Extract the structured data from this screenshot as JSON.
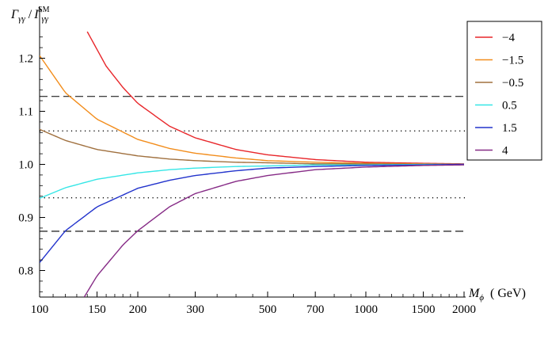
{
  "chart_data": {
    "type": "line",
    "ylabel": "Γγγ / ΓγγSM",
    "ylabel_parts": {
      "sym": "Γ",
      "sub": "γγ",
      "slash": "/",
      "sym2": "Γ",
      "sub2": "γγ",
      "sup2": "SM"
    },
    "xlabel": "Mϕ ( GeV)",
    "xlabel_parts": {
      "sym": "M",
      "sub": "ϕ",
      "unit": "( GeV)"
    },
    "x_scale": "log",
    "xlim": [
      100,
      2000
    ],
    "ylim": [
      0.75,
      1.25
    ],
    "x_ticks": [
      100,
      150,
      200,
      300,
      500,
      700,
      1000,
      1500,
      2000
    ],
    "x_tick_labels": [
      "100",
      "150",
      "200",
      "300",
      "500",
      "700",
      "1000",
      "1500",
      "2000"
    ],
    "y_ticks": [
      0.8,
      0.9,
      1.0,
      1.1,
      1.2
    ],
    "y_tick_labels": [
      "0.8",
      "0.9",
      "1.0",
      "1.1",
      "1.2"
    ],
    "reference_lines": [
      {
        "y": 1.128,
        "style": "dashed"
      },
      {
        "y": 1.063,
        "style": "dotted"
      },
      {
        "y": 0.937,
        "style": "dotted"
      },
      {
        "y": 0.874,
        "style": "dashed"
      }
    ],
    "series": [
      {
        "name": "−4",
        "color": "#e8262a",
        "x": [
          140,
          160,
          180,
          200,
          250,
          300,
          400,
          500,
          700,
          1000,
          1500,
          2000
        ],
        "y": [
          1.25,
          1.185,
          1.145,
          1.115,
          1.072,
          1.05,
          1.028,
          1.018,
          1.009,
          1.004,
          1.002,
          1.001
        ]
      },
      {
        "name": "−1.5",
        "color": "#f28d1c",
        "x": [
          100,
          120,
          150,
          200,
          250,
          300,
          400,
          500,
          700,
          1000,
          1500,
          2000
        ],
        "y": [
          1.205,
          1.135,
          1.085,
          1.047,
          1.03,
          1.021,
          1.012,
          1.007,
          1.004,
          1.002,
          1.001,
          1.0
        ]
      },
      {
        "name": "−0.5",
        "color": "#a0703e",
        "x": [
          100,
          120,
          150,
          200,
          250,
          300,
          400,
          500,
          700,
          1000,
          1500,
          2000
        ],
        "y": [
          1.066,
          1.045,
          1.028,
          1.016,
          1.01,
          1.007,
          1.004,
          1.003,
          1.001,
          1.001,
          1.0,
          1.0
        ]
      },
      {
        "name": "0.5",
        "color": "#35e6e6",
        "x": [
          100,
          120,
          150,
          200,
          250,
          300,
          400,
          500,
          700,
          1000,
          1500,
          2000
        ],
        "y": [
          0.936,
          0.956,
          0.972,
          0.984,
          0.99,
          0.993,
          0.996,
          0.997,
          0.999,
          0.999,
          1.0,
          1.0
        ]
      },
      {
        "name": "1.5",
        "color": "#2233cc",
        "x": [
          100,
          120,
          150,
          200,
          250,
          300,
          400,
          500,
          700,
          1000,
          1500,
          2000
        ],
        "y": [
          0.815,
          0.875,
          0.92,
          0.955,
          0.97,
          0.979,
          0.988,
          0.993,
          0.996,
          0.998,
          0.999,
          1.0
        ]
      },
      {
        "name": "4",
        "color": "#862b86",
        "x": [
          137,
          150,
          180,
          200,
          250,
          300,
          400,
          500,
          700,
          1000,
          1500,
          2000
        ],
        "y": [
          0.75,
          0.79,
          0.848,
          0.875,
          0.92,
          0.945,
          0.968,
          0.979,
          0.99,
          0.995,
          0.998,
          0.999
        ]
      }
    ],
    "legend_position": "top-right",
    "grid": false
  }
}
